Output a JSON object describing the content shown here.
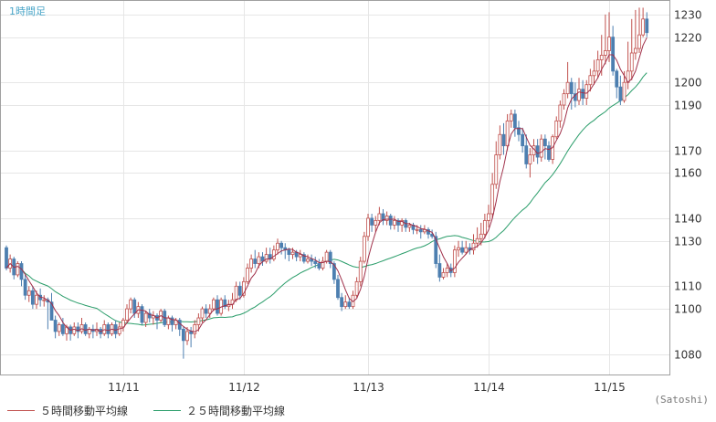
{
  "header": {
    "timeframe": "1時間足"
  },
  "credit": "(Satoshi)",
  "legend": [
    {
      "label": "５時間移動平均線",
      "color": "#c0504d"
    },
    {
      "label": "２５時間移動平均線",
      "color": "#2a9d6a"
    }
  ],
  "colors": {
    "up": "#c0504d",
    "down": "#4d7fb0",
    "ma5": "#a0304a",
    "ma25": "#2a9d6a"
  },
  "chart_data": {
    "type": "candlestick",
    "y_axis_side": "right",
    "ylim": [
      1071,
      1236
    ],
    "y_ticks": [
      1080,
      1100,
      1110,
      1130,
      1140,
      1160,
      1170,
      1190,
      1200,
      1220,
      1230
    ],
    "x_ticks": [
      {
        "label": "11/11",
        "index": 31
      },
      {
        "label": "11/12",
        "index": 63
      },
      {
        "label": "11/13",
        "index": 96
      },
      {
        "label": "11/14",
        "index": 128
      },
      {
        "label": "11/15",
        "index": 160
      }
    ],
    "candles": [
      [
        1127,
        1118,
        1128,
        1117
      ],
      [
        1118,
        1122,
        1124,
        1116
      ],
      [
        1122,
        1115,
        1123,
        1113
      ],
      [
        1115,
        1120,
        1121,
        1114
      ],
      [
        1120,
        1113,
        1121,
        1110
      ],
      [
        1113,
        1106,
        1115,
        1104
      ],
      [
        1106,
        1108,
        1110,
        1103
      ],
      [
        1108,
        1102,
        1110,
        1100
      ],
      [
        1102,
        1106,
        1108,
        1100
      ],
      [
        1106,
        1104,
        1109,
        1101
      ],
      [
        1104,
        1104,
        1106,
        1101
      ],
      [
        1104,
        1103,
        1105,
        1091
      ],
      [
        1103,
        1095,
        1107,
        1095
      ],
      [
        1095,
        1090,
        1097,
        1087
      ],
      [
        1090,
        1093,
        1094,
        1088
      ],
      [
        1093,
        1089,
        1096,
        1088
      ],
      [
        1089,
        1092,
        1093,
        1086
      ],
      [
        1092,
        1089,
        1093,
        1086
      ],
      [
        1089,
        1092,
        1094,
        1088
      ],
      [
        1092,
        1090,
        1094,
        1087
      ],
      [
        1090,
        1093,
        1096,
        1089
      ],
      [
        1093,
        1089,
        1094,
        1088
      ],
      [
        1089,
        1091,
        1092,
        1087
      ],
      [
        1091,
        1090,
        1093,
        1087
      ],
      [
        1090,
        1091,
        1094,
        1088
      ],
      [
        1091,
        1089,
        1092,
        1087
      ],
      [
        1089,
        1093,
        1095,
        1088
      ],
      [
        1093,
        1089,
        1094,
        1087
      ],
      [
        1089,
        1093,
        1094,
        1088
      ],
      [
        1093,
        1089,
        1095,
        1087
      ],
      [
        1089,
        1092,
        1094,
        1088
      ],
      [
        1092,
        1095,
        1096,
        1090
      ],
      [
        1095,
        1100,
        1102,
        1094
      ],
      [
        1100,
        1104,
        1105,
        1098
      ],
      [
        1104,
        1098,
        1105,
        1096
      ],
      [
        1098,
        1101,
        1103,
        1096
      ],
      [
        1101,
        1094,
        1102,
        1093
      ],
      [
        1094,
        1098,
        1099,
        1092
      ],
      [
        1098,
        1096,
        1100,
        1094
      ],
      [
        1096,
        1097,
        1099,
        1093
      ],
      [
        1097,
        1095,
        1098,
        1091
      ],
      [
        1095,
        1099,
        1100,
        1094
      ],
      [
        1099,
        1093,
        1100,
        1092
      ],
      [
        1093,
        1096,
        1097,
        1091
      ],
      [
        1096,
        1093,
        1097,
        1090
      ],
      [
        1093,
        1095,
        1096,
        1091
      ],
      [
        1095,
        1091,
        1096,
        1088
      ],
      [
        1091,
        1086,
        1092,
        1078
      ],
      [
        1086,
        1090,
        1092,
        1084
      ],
      [
        1090,
        1089,
        1092,
        1083
      ],
      [
        1089,
        1093,
        1095,
        1087
      ],
      [
        1093,
        1096,
        1098,
        1090
      ],
      [
        1096,
        1100,
        1101,
        1094
      ],
      [
        1100,
        1098,
        1102,
        1096
      ],
      [
        1098,
        1100,
        1102,
        1096
      ],
      [
        1100,
        1104,
        1105,
        1099
      ],
      [
        1104,
        1098,
        1106,
        1097
      ],
      [
        1098,
        1104,
        1105,
        1097
      ],
      [
        1104,
        1101,
        1106,
        1100
      ],
      [
        1101,
        1102,
        1104,
        1099
      ],
      [
        1102,
        1104,
        1107,
        1100
      ],
      [
        1104,
        1110,
        1112,
        1103
      ],
      [
        1110,
        1106,
        1112,
        1104
      ],
      [
        1106,
        1112,
        1114,
        1105
      ],
      [
        1112,
        1118,
        1120,
        1111
      ],
      [
        1118,
        1122,
        1124,
        1116
      ],
      [
        1122,
        1120,
        1126,
        1118
      ],
      [
        1120,
        1123,
        1125,
        1118
      ],
      [
        1123,
        1121,
        1125,
        1119
      ],
      [
        1121,
        1124,
        1127,
        1120
      ],
      [
        1124,
        1122,
        1127,
        1120
      ],
      [
        1122,
        1126,
        1128,
        1121
      ],
      [
        1126,
        1129,
        1131,
        1124
      ],
      [
        1129,
        1127,
        1130,
        1124
      ],
      [
        1127,
        1126,
        1129,
        1122
      ],
      [
        1126,
        1124,
        1127,
        1121
      ],
      [
        1124,
        1125,
        1127,
        1122
      ],
      [
        1125,
        1123,
        1126,
        1121
      ],
      [
        1123,
        1124,
        1126,
        1121
      ],
      [
        1124,
        1121,
        1125,
        1120
      ],
      [
        1121,
        1122,
        1124,
        1120
      ],
      [
        1122,
        1121,
        1124,
        1119
      ],
      [
        1121,
        1120,
        1123,
        1118
      ],
      [
        1120,
        1118,
        1122,
        1117
      ],
      [
        1118,
        1121,
        1123,
        1117
      ],
      [
        1121,
        1125,
        1126,
        1120
      ],
      [
        1125,
        1120,
        1126,
        1118
      ],
      [
        1120,
        1113,
        1121,
        1111
      ],
      [
        1113,
        1105,
        1115,
        1104
      ],
      [
        1105,
        1101,
        1107,
        1099
      ],
      [
        1101,
        1103,
        1106,
        1100
      ],
      [
        1103,
        1101,
        1105,
        1100
      ],
      [
        1101,
        1106,
        1108,
        1100
      ],
      [
        1106,
        1112,
        1114,
        1105
      ],
      [
        1112,
        1121,
        1123,
        1110
      ],
      [
        1121,
        1132,
        1134,
        1120
      ],
      [
        1132,
        1140,
        1142,
        1130
      ],
      [
        1140,
        1137,
        1142,
        1134
      ],
      [
        1137,
        1139,
        1141,
        1134
      ],
      [
        1139,
        1142,
        1145,
        1137
      ],
      [
        1142,
        1139,
        1144,
        1137
      ],
      [
        1139,
        1141,
        1143,
        1137
      ],
      [
        1141,
        1137,
        1142,
        1135
      ],
      [
        1137,
        1139,
        1141,
        1135
      ],
      [
        1139,
        1137,
        1140,
        1134
      ],
      [
        1137,
        1139,
        1140,
        1134
      ],
      [
        1139,
        1136,
        1140,
        1134
      ],
      [
        1136,
        1137,
        1138,
        1134
      ],
      [
        1137,
        1135,
        1138,
        1133
      ],
      [
        1135,
        1135,
        1137,
        1133
      ],
      [
        1135,
        1134,
        1137,
        1131
      ],
      [
        1134,
        1135,
        1137,
        1133
      ],
      [
        1135,
        1133,
        1136,
        1131
      ],
      [
        1133,
        1132,
        1135,
        1131
      ],
      [
        1132,
        1120,
        1134,
        1118
      ],
      [
        1120,
        1114,
        1124,
        1112
      ],
      [
        1114,
        1116,
        1118,
        1113
      ],
      [
        1116,
        1118,
        1120,
        1114
      ],
      [
        1118,
        1116,
        1120,
        1114
      ],
      [
        1116,
        1126,
        1128,
        1114
      ],
      [
        1126,
        1127,
        1130,
        1123
      ],
      [
        1127,
        1125,
        1130,
        1124
      ],
      [
        1125,
        1127,
        1130,
        1124
      ],
      [
        1127,
        1126,
        1129,
        1124
      ],
      [
        1126,
        1129,
        1133,
        1124
      ],
      [
        1129,
        1131,
        1136,
        1127
      ],
      [
        1131,
        1133,
        1138,
        1128
      ],
      [
        1133,
        1139,
        1142,
        1131
      ],
      [
        1139,
        1142,
        1146,
        1136
      ],
      [
        1142,
        1155,
        1160,
        1140
      ],
      [
        1155,
        1168,
        1174,
        1153
      ],
      [
        1168,
        1177,
        1181,
        1166
      ],
      [
        1177,
        1172,
        1182,
        1168
      ],
      [
        1172,
        1183,
        1186,
        1170
      ],
      [
        1183,
        1186,
        1188,
        1180
      ],
      [
        1186,
        1180,
        1188,
        1176
      ],
      [
        1180,
        1177,
        1183,
        1174
      ],
      [
        1177,
        1172,
        1180,
        1169
      ],
      [
        1172,
        1164,
        1177,
        1162
      ],
      [
        1164,
        1168,
        1171,
        1158
      ],
      [
        1168,
        1172,
        1175,
        1165
      ],
      [
        1172,
        1167,
        1175,
        1164
      ],
      [
        1167,
        1175,
        1177,
        1165
      ],
      [
        1175,
        1172,
        1177,
        1166
      ],
      [
        1172,
        1166,
        1174,
        1165
      ],
      [
        1166,
        1176,
        1177,
        1164
      ],
      [
        1176,
        1183,
        1185,
        1175
      ],
      [
        1183,
        1190,
        1192,
        1180
      ],
      [
        1190,
        1195,
        1197,
        1188
      ],
      [
        1195,
        1200,
        1209,
        1193
      ],
      [
        1200,
        1195,
        1202,
        1188
      ],
      [
        1195,
        1192,
        1200,
        1189
      ],
      [
        1192,
        1197,
        1202,
        1190
      ],
      [
        1197,
        1193,
        1201,
        1190
      ],
      [
        1193,
        1199,
        1201,
        1190
      ],
      [
        1199,
        1203,
        1206,
        1196
      ],
      [
        1203,
        1205,
        1210,
        1199
      ],
      [
        1205,
        1210,
        1214,
        1202
      ],
      [
        1210,
        1212,
        1221,
        1203
      ],
      [
        1212,
        1214,
        1230,
        1208
      ],
      [
        1214,
        1220,
        1231,
        1209
      ],
      [
        1220,
        1205,
        1225,
        1203
      ],
      [
        1205,
        1198,
        1206,
        1193
      ],
      [
        1198,
        1192,
        1203,
        1190
      ],
      [
        1192,
        1200,
        1205,
        1191
      ],
      [
        1200,
        1205,
        1218,
        1197
      ],
      [
        1205,
        1213,
        1228,
        1201
      ],
      [
        1213,
        1215,
        1232,
        1210
      ],
      [
        1215,
        1221,
        1233,
        1213
      ],
      [
        1221,
        1228,
        1233,
        1220
      ],
      [
        1228,
        1222,
        1231,
        1220
      ]
    ]
  }
}
